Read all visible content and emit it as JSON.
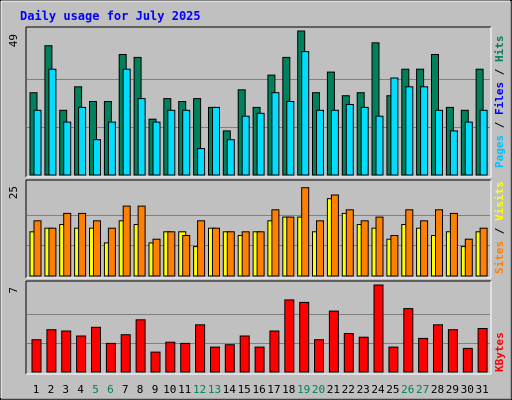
{
  "chart_data": {
    "type": "bar",
    "title": "Daily usage for July 2025",
    "categories": [
      "1",
      "2",
      "3",
      "4",
      "5",
      "6",
      "7",
      "8",
      "9",
      "10",
      "11",
      "12",
      "13",
      "14",
      "15",
      "16",
      "17",
      "18",
      "19",
      "20",
      "21",
      "22",
      "23",
      "24",
      "25",
      "26",
      "27",
      "28",
      "29",
      "30",
      "31"
    ],
    "weekend_days": [
      "5",
      "6",
      "12",
      "13",
      "19",
      "20",
      "26",
      "27"
    ],
    "colors": {
      "background": "#c0c0c0",
      "title": "#0000ff",
      "pages": "#00c0ff",
      "files": "#00ffff",
      "hits": "#008080",
      "sites": "#ff8000",
      "visits": "#ffff00",
      "kbytes": "#ff0000",
      "weekday_label": "#000000",
      "weekend_label": "#00805c"
    },
    "panels": [
      {
        "id": "hits_files_pages",
        "max_label": "49",
        "ymax": 49,
        "legend": [
          {
            "text": "Hits",
            "color": "#00805c"
          },
          {
            "text": "Files",
            "color": "#0000ff"
          },
          {
            "text": "Pages",
            "color": "#00c0ff"
          }
        ],
        "series": [
          {
            "name": "Hits",
            "color": "#00805c",
            "values": [
              28,
              44,
              22,
              30,
              25,
              25,
              41,
              40,
              19,
              26,
              25,
              26,
              23,
              15,
              29,
              23,
              34,
              40,
              49,
              28,
              35,
              27,
              28,
              45,
              27,
              36,
              36,
              41,
              23,
              22,
              36
            ]
          },
          {
            "name": "Files",
            "color": "#00ddff",
            "values": [
              22,
              36,
              18,
              23,
              12,
              18,
              36,
              26,
              18,
              22,
              22,
              9,
              23,
              12,
              20,
              21,
              28,
              25,
              42,
              22,
              22,
              24,
              23,
              20,
              33,
              30,
              30,
              22,
              15,
              18,
              22
            ]
          }
        ]
      },
      {
        "id": "visits_sites",
        "max_label": "25",
        "ymax": 25,
        "legend": [
          {
            "text": "Visits",
            "color": "#ffff00"
          },
          {
            "text": "Sites",
            "color": "#ff8000"
          }
        ],
        "series": [
          {
            "name": "Visits",
            "color": "#ffff00",
            "values": [
              12,
              13,
              14,
              13,
              13,
              9,
              15,
              14,
              9,
              12,
              12,
              8,
              13,
              12,
              11,
              12,
              15,
              16,
              16,
              12,
              21,
              17,
              14,
              13,
              10,
              14,
              13,
              11,
              12,
              8,
              12
            ]
          },
          {
            "name": "Sites",
            "color": "#ff8000",
            "values": [
              15,
              13,
              17,
              17,
              15,
              13,
              19,
              19,
              10,
              12,
              11,
              15,
              13,
              12,
              12,
              12,
              18,
              16,
              24,
              15,
              22,
              18,
              15,
              16,
              11,
              18,
              15,
              18,
              17,
              10,
              13
            ]
          }
        ]
      },
      {
        "id": "kbytes",
        "max_label": "7",
        "ymax": 7,
        "legend": [
          {
            "text": "KBytes",
            "color": "#ff0000"
          }
        ],
        "series": [
          {
            "name": "KBytes",
            "color": "#ff0000",
            "values": [
              2.6,
              3.4,
              3.3,
              2.9,
              3.6,
              2.3,
              3.0,
              4.2,
              1.6,
              2.4,
              2.3,
              3.8,
              2.0,
              2.2,
              2.9,
              2.0,
              3.3,
              5.8,
              5.6,
              2.6,
              4.9,
              3.1,
              2.8,
              7.0,
              2.0,
              5.1,
              2.7,
              3.8,
              3.4,
              1.9,
              3.5
            ]
          }
        ]
      }
    ]
  }
}
